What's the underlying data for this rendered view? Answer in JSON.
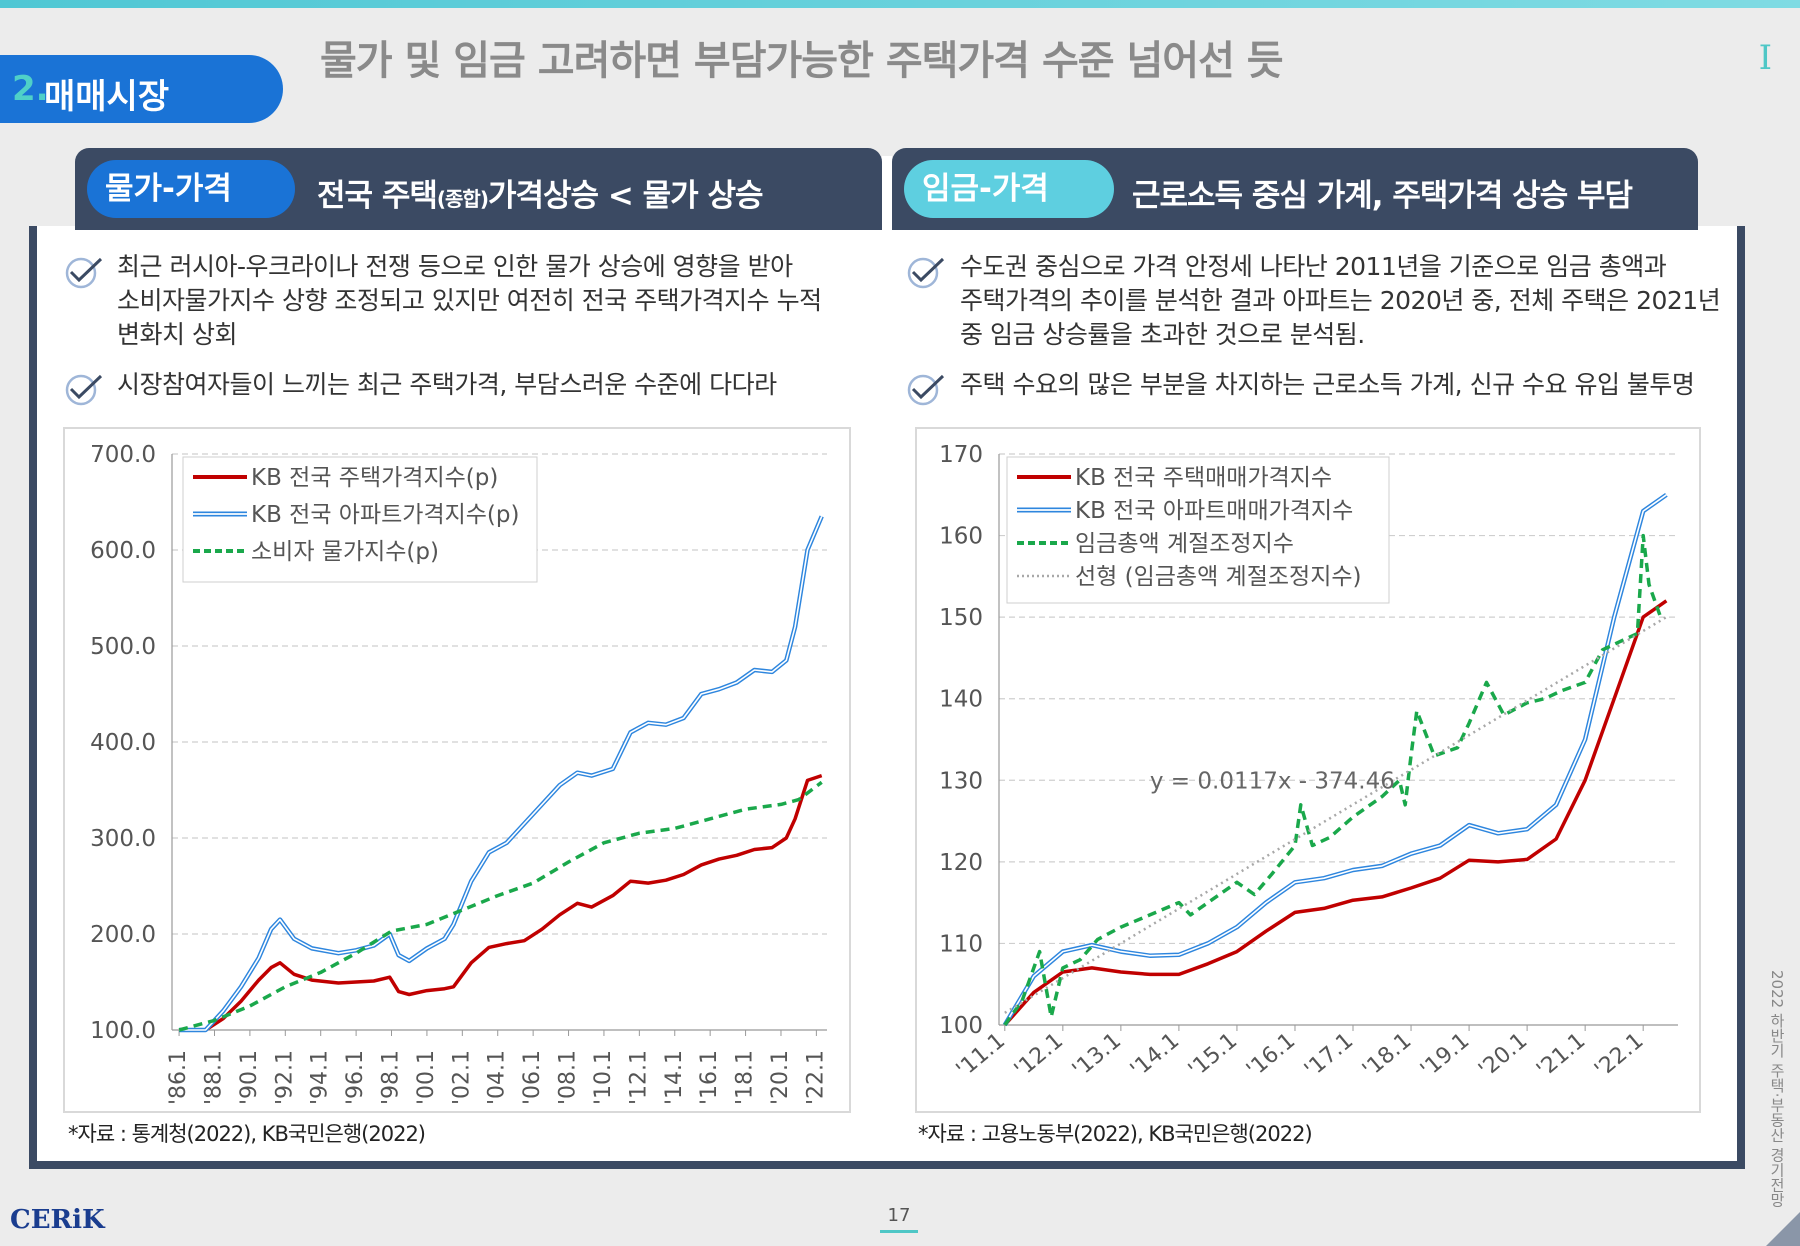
{
  "section": {
    "number": "2.",
    "label": "매매시장"
  },
  "page_title": "물가 및 임금 고려하면 부담가능한 주택가격 수준 넘어선 듯",
  "roman": "I",
  "left": {
    "pill": "물가-가격",
    "header_pre": "전국 주택",
    "header_small": "(종합)",
    "header_post": "가격상승 < 물가 상승",
    "bullet1_line1": "최근 러시아-우크라이나 전쟁 등으로 인한 물가 상승에 영향을 받아",
    "bullet1_line2": "소비자물가지수 상향 조정되고 있지만 여전히 전국 주택가격지수 누적",
    "bullet1_line3": "변화치 상회",
    "bullet2": "시장참여자들이 느끼는 최근 주택가격, 부담스러운 수준에 다다라",
    "source": "*자료 : 통계청(2022), KB국민은행(2022)"
  },
  "right": {
    "pill": "임금-가격",
    "header": "근로소득 중심 가계, 주택가격 상승 부담",
    "bullet1_line1": "수도권 중심으로 가격 안정세 나타난 2011년을 기준으로 임금 총액과",
    "bullet1_line2": "주택가격의 추이를 분석한 결과 아파트는 2020년 중, 전체 주택은 2021년",
    "bullet1_line3": "중 임금 상승률을 초과한  것으로 분석됨.",
    "bullet2": "주택 수요의 많은 부분을 차지하는 근로소득 가계, 신규 수요 유입 불투명",
    "source": "*자료 : 고용노동부(2022), KB국민은행(2022)"
  },
  "footer": {
    "logo": "CERiK",
    "page": "17",
    "side": "2022 하반기 주택·부동산 경기전망"
  },
  "colors": {
    "red": "#c00000",
    "blue": "#2e86de",
    "green": "#1aa84b",
    "gray": "#a8a8a8",
    "navy": "#3b4a63"
  },
  "chart_data": [
    {
      "type": "line",
      "ylim": [
        100,
        700
      ],
      "yticks": [
        "100.0",
        "200.0",
        "300.0",
        "400.0",
        "500.0",
        "600.0",
        "700.0"
      ],
      "xticks": [
        "'86.1",
        "'88.1",
        "'90.1",
        "'92.1",
        "'94.1",
        "'96.1",
        "'98.1",
        "'00.1",
        "'02.1",
        "'04.1",
        "'06.1",
        "'08.1",
        "'10.1",
        "'12.1",
        "'14.1",
        "'16.1",
        "'18.1",
        "'20.1",
        "'22.1"
      ],
      "legend": "top-left",
      "grid": true,
      "series": [
        {
          "name": "KB 전국 주택가격지수(p)",
          "color": "#c00000",
          "style": "solid",
          "x": [
            1986,
            1987.5,
            1988.5,
            1989.5,
            1990.5,
            1991.2,
            1991.7,
            1992.5,
            1993.5,
            1995,
            1996,
            1997,
            1997.9,
            1998.4,
            1999,
            2000,
            2001,
            2001.5,
            2002.5,
            2003.5,
            2004.5,
            2005.5,
            2006.5,
            2007.5,
            2008.5,
            2009.3,
            2010.5,
            2011.5,
            2012.5,
            2013.5,
            2014.5,
            2015.5,
            2016.5,
            2017.5,
            2018.5,
            2019.5,
            2020.3,
            2020.8,
            2021.5,
            2022.3
          ],
          "y": [
            100,
            100,
            112,
            130,
            152,
            165,
            170,
            158,
            152,
            149,
            150,
            151,
            155,
            140,
            137,
            141,
            143,
            145,
            170,
            186,
            190,
            193,
            205,
            220,
            232,
            228,
            240,
            255,
            253,
            256,
            262,
            272,
            278,
            282,
            288,
            290,
            300,
            320,
            360,
            365
          ]
        },
        {
          "name": "KB 전국 아파트가격지수(p)",
          "color": "#2e86de",
          "style": "double",
          "x": [
            1986,
            1987.5,
            1988.5,
            1989.5,
            1990.5,
            1991.2,
            1991.7,
            1992.5,
            1993.5,
            1995,
            1996,
            1997,
            1997.9,
            1998.4,
            1999,
            2000,
            2001,
            2001.5,
            2002.5,
            2003.5,
            2004.5,
            2005.5,
            2006.5,
            2007.5,
            2008.5,
            2009.3,
            2010.5,
            2011.5,
            2012.5,
            2013.5,
            2014.5,
            2015.5,
            2016.5,
            2017.5,
            2018.5,
            2019.5,
            2020.3,
            2020.8,
            2021.5,
            2022.3
          ],
          "y": [
            100,
            100,
            120,
            145,
            175,
            205,
            215,
            195,
            185,
            180,
            183,
            188,
            200,
            178,
            172,
            185,
            195,
            210,
            255,
            285,
            295,
            315,
            335,
            355,
            368,
            365,
            372,
            410,
            420,
            418,
            425,
            450,
            455,
            462,
            475,
            473,
            485,
            520,
            600,
            635
          ]
        },
        {
          "name": "소비자 물가지수(p)",
          "color": "#1aa84b",
          "style": "dashed",
          "x": [
            1986,
            1988,
            1990,
            1992,
            1994,
            1996,
            1998,
            2000,
            2002,
            2004,
            2006,
            2008,
            2010,
            2012,
            2014,
            2016,
            2018,
            2020,
            2021,
            2022.3
          ],
          "y": [
            100,
            110,
            125,
            145,
            160,
            180,
            203,
            210,
            225,
            240,
            253,
            275,
            295,
            305,
            310,
            320,
            330,
            335,
            340,
            358
          ]
        }
      ]
    },
    {
      "type": "line",
      "ylim": [
        100,
        170
      ],
      "yticks": [
        "100",
        "110",
        "120",
        "130",
        "140",
        "150",
        "160",
        "170"
      ],
      "xticks": [
        "'11.1",
        "'12.1",
        "'13.1",
        "'14.1",
        "'15.1",
        "'16.1",
        "'17.1",
        "'18.1",
        "'19.1",
        "'20.1",
        "'21.1",
        "'22.1"
      ],
      "legend": "top-left",
      "grid": true,
      "annotation": "y = 0.0117x - 374.46",
      "series": [
        {
          "name": "KB 전국 주택매매가격지수",
          "color": "#c00000",
          "style": "solid",
          "x": [
            2011,
            2011.5,
            2012,
            2012.5,
            2013,
            2013.5,
            2014,
            2014.5,
            2015,
            2015.5,
            2016,
            2016.5,
            2017,
            2017.5,
            2018,
            2018.5,
            2019,
            2019.5,
            2020,
            2020.5,
            2021,
            2021.5,
            2022,
            2022.4
          ],
          "y": [
            100,
            104,
            106.5,
            107,
            106.5,
            106.2,
            106.2,
            107.5,
            109,
            111.5,
            113.8,
            114.3,
            115.3,
            115.7,
            116.8,
            118,
            120.2,
            120,
            120.3,
            122.8,
            130,
            140,
            150,
            152
          ]
        },
        {
          "name": "KB 전국 아파트매매가격지수",
          "color": "#2e86de",
          "style": "double",
          "x": [
            2011,
            2011.5,
            2012,
            2012.5,
            2013,
            2013.5,
            2014,
            2014.5,
            2015,
            2015.5,
            2016,
            2016.5,
            2017,
            2017.5,
            2018,
            2018.5,
            2019,
            2019.5,
            2020,
            2020.5,
            2021,
            2021.5,
            2022,
            2022.4
          ],
          "y": [
            100,
            106,
            109,
            109.8,
            109,
            108.5,
            108.6,
            110,
            112,
            115,
            117.5,
            118,
            119,
            119.5,
            121,
            122,
            124.5,
            123.5,
            124,
            127,
            135,
            150,
            163,
            165
          ]
        },
        {
          "name": "임금총액 계절조정지수",
          "color": "#1aa84b",
          "style": "dashed",
          "x": [
            2011,
            2011.3,
            2011.6,
            2011.8,
            2012,
            2012.3,
            2012.6,
            2013,
            2013.5,
            2014,
            2014.2,
            2014.5,
            2015,
            2015.3,
            2015.6,
            2016,
            2016.1,
            2016.3,
            2016.6,
            2017,
            2017.5,
            2017.8,
            2017.9,
            2018,
            2018.1,
            2018.4,
            2018.8,
            2019,
            2019.3,
            2019.6,
            2020,
            2020.3,
            2020.6,
            2021,
            2021.3,
            2021.6,
            2021.9,
            2022,
            2022.1,
            2022.3
          ],
          "y": [
            100,
            103,
            109,
            101,
            107,
            108,
            110.5,
            112,
            113.5,
            115,
            113.5,
            115,
            117.5,
            116,
            118.5,
            122,
            127,
            122,
            123,
            125.5,
            128,
            130,
            127,
            133,
            138.5,
            133,
            134,
            137,
            142,
            138,
            139.5,
            140,
            141,
            142,
            146,
            147,
            148,
            160,
            154,
            150
          ]
        },
        {
          "name": "선형 (임금총액 계절조정지수)",
          "color": "#a8a8a8",
          "style": "dotted",
          "x": [
            2011,
            2022.4
          ],
          "y": [
            101.5,
            150
          ]
        }
      ]
    }
  ]
}
